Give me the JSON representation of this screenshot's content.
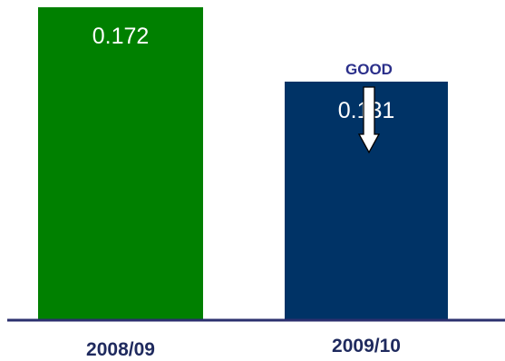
{
  "chart_data": {
    "type": "bar",
    "categories": [
      "2008/09",
      "2009/10"
    ],
    "values": [
      0.172,
      0.131
    ],
    "value_labels": [
      "0.172",
      "0.131"
    ],
    "colors": [
      "#008000",
      "#003366"
    ],
    "ylim": [
      0,
      0.172
    ],
    "grid": false,
    "annotation": {
      "text": "GOOD",
      "category": "2009/10",
      "arrow": "down"
    },
    "axis_color": "#2b2f6e"
  }
}
